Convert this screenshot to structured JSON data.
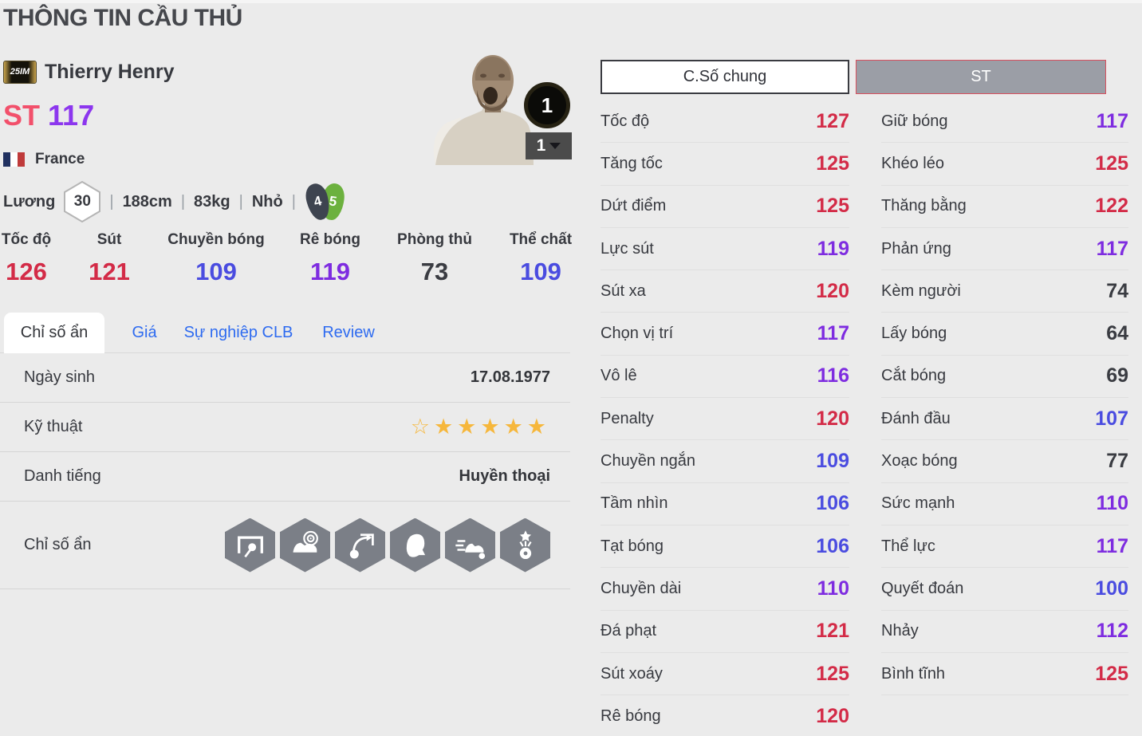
{
  "page_title": "THÔNG TIN CẦU THỦ",
  "player": {
    "badge": "25IM",
    "name": "Thierry Henry",
    "position": "ST",
    "rating": "117",
    "nation": "France",
    "salary_label": "Lương",
    "salary": "30",
    "height": "188cm",
    "weight": "83kg",
    "body_type": "Nhỏ",
    "weak_foot": "4",
    "strong_foot": "5",
    "level_badge": "1",
    "level_dropdown": "1"
  },
  "summary_stats": [
    {
      "label": "Tốc độ",
      "value": 126
    },
    {
      "label": "Sút",
      "value": 121
    },
    {
      "label": "Chuyền bóng",
      "value": 109
    },
    {
      "label": "Rê bóng",
      "value": 119
    },
    {
      "label": "Phòng thủ",
      "value": 73
    },
    {
      "label": "Thể chất",
      "value": 109
    }
  ],
  "tabs": [
    {
      "label": "Chỉ số ẩn",
      "active": true
    },
    {
      "label": "Giá",
      "active": false
    },
    {
      "label": "Sự nghiệp CLB",
      "active": false
    },
    {
      "label": "Review",
      "active": false
    }
  ],
  "details": {
    "birth_label": "Ngày sinh",
    "birth_value": "17.08.1977",
    "skill_label": "Kỹ thuật",
    "skill_stars_outline": 1,
    "skill_stars_filled": 5,
    "fame_label": "Danh tiếng",
    "fame_value": "Huyền thoại",
    "hidden_label": "Chỉ số ẩn",
    "hidden_icons": [
      "goal-shot",
      "boot-target",
      "chip-shot",
      "header",
      "speed-dribble",
      "star-ball"
    ]
  },
  "stat_columns": [
    {
      "header": "C.Số chung",
      "rows": [
        {
          "label": "Tốc độ",
          "value": 127
        },
        {
          "label": "Tăng tốc",
          "value": 125
        },
        {
          "label": "Dứt điểm",
          "value": 125
        },
        {
          "label": "Lực sút",
          "value": 119
        },
        {
          "label": "Sút xa",
          "value": 120
        },
        {
          "label": "Chọn vị trí",
          "value": 117
        },
        {
          "label": "Vô lê",
          "value": 116
        },
        {
          "label": "Penalty",
          "value": 120
        },
        {
          "label": "Chuyền ngắn",
          "value": 109
        },
        {
          "label": "Tầm nhìn",
          "value": 106
        },
        {
          "label": "Tạt bóng",
          "value": 106
        },
        {
          "label": "Chuyền dài",
          "value": 110
        },
        {
          "label": "Đá phạt",
          "value": 121
        },
        {
          "label": "Sút xoáy",
          "value": 125
        },
        {
          "label": "Rê bóng",
          "value": 120
        }
      ]
    },
    {
      "header": "ST",
      "rows": [
        {
          "label": "Giữ bóng",
          "value": 117
        },
        {
          "label": "Khéo léo",
          "value": 125
        },
        {
          "label": "Thăng bằng",
          "value": 122
        },
        {
          "label": "Phản ứng",
          "value": 117
        },
        {
          "label": "Kèm người",
          "value": 74
        },
        {
          "label": "Lấy bóng",
          "value": 64
        },
        {
          "label": "Cắt bóng",
          "value": 69
        },
        {
          "label": "Đánh đầu",
          "value": 107
        },
        {
          "label": "Xoạc bóng",
          "value": 77
        },
        {
          "label": "Sức mạnh",
          "value": 110
        },
        {
          "label": "Thể lực",
          "value": 117
        },
        {
          "label": "Quyết đoán",
          "value": 100
        },
        {
          "label": "Nhảy",
          "value": 112
        },
        {
          "label": "Bình tĩnh",
          "value": 125
        }
      ]
    }
  ],
  "value_colors": {
    "red": "#d32b47",
    "purple": "#7e2ce0",
    "blue": "#4a4ce0",
    "dark": "#3a3c42",
    "red_min": 120,
    "purple_min": 110,
    "blue_min": 100
  },
  "accent_colors": {
    "position_pink": "#f2506b",
    "rating_purple": "#8c36ee",
    "tab_link_blue": "#2e6bf0",
    "star_gold": "#f6b73c",
    "st_header_border": "#d8505e"
  }
}
